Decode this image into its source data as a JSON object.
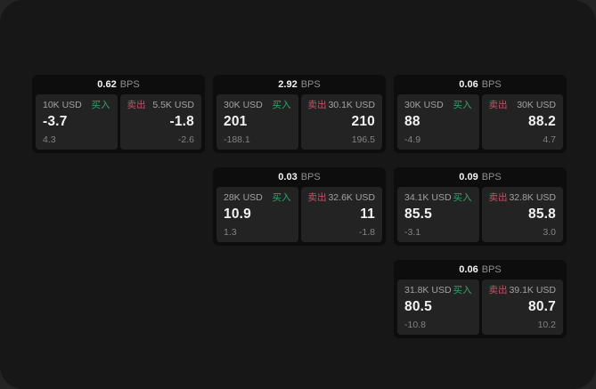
{
  "labels": {
    "bps_unit": "BPS",
    "buy": "买入",
    "sell": "卖出"
  },
  "cards": [
    {
      "bps": "0.62",
      "buy": {
        "amount": "10K USD",
        "value": "-3.7",
        "sub": "4.3"
      },
      "sell": {
        "amount": "5.5K USD",
        "value": "-1.8",
        "sub": "-2.6"
      }
    },
    {
      "bps": "2.92",
      "buy": {
        "amount": "30K USD",
        "value": "201",
        "sub": "-188.1"
      },
      "sell": {
        "amount": "30.1K USD",
        "value": "210",
        "sub": "196.5"
      }
    },
    {
      "bps": "0.06",
      "buy": {
        "amount": "30K USD",
        "value": "88",
        "sub": "-4.9"
      },
      "sell": {
        "amount": "30K USD",
        "value": "88.2",
        "sub": "4.7"
      }
    },
    {
      "bps": "0.03",
      "buy": {
        "amount": "28K USD",
        "value": "10.9",
        "sub": "1.3"
      },
      "sell": {
        "amount": "32.6K USD",
        "value": "11",
        "sub": "-1.8"
      }
    },
    {
      "bps": "0.09",
      "buy": {
        "amount": "34.1K USD",
        "value": "85.5",
        "sub": "-3.1"
      },
      "sell": {
        "amount": "32.8K USD",
        "value": "85.8",
        "sub": "3.0"
      }
    },
    {
      "bps": "0.06",
      "buy": {
        "amount": "31.8K USD",
        "value": "80.5",
        "sub": "-10.8"
      },
      "sell": {
        "amount": "39.1K USD",
        "value": "80.7",
        "sub": "10.2"
      }
    }
  ]
}
